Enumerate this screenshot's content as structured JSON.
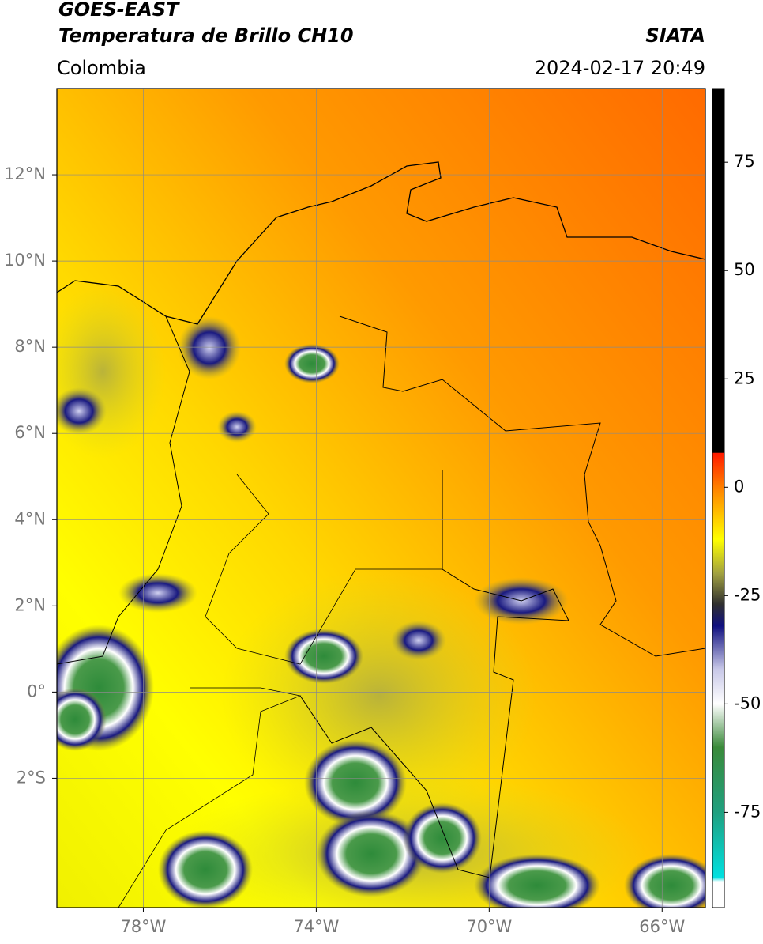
{
  "header": {
    "title": "GOES-EAST",
    "subtitle": "Temperatura de Brillo CH10",
    "source": "SIATA",
    "region": "Colombia",
    "datetime": "2024-02-17 20:49"
  },
  "map": {
    "lonlim": [
      -80,
      -65
    ],
    "latlim": [
      -5,
      14
    ],
    "lonticks": [
      {
        "value": -78,
        "label": "78°W"
      },
      {
        "value": -74,
        "label": "74°W"
      },
      {
        "value": -70,
        "label": "70°W"
      },
      {
        "value": -66,
        "label": "66°W"
      }
    ],
    "latticks": [
      {
        "value": 12,
        "label": "12°N"
      },
      {
        "value": 10,
        "label": "10°N"
      },
      {
        "value": 8,
        "label": "8°N"
      },
      {
        "value": 6,
        "label": "6°N"
      },
      {
        "value": 4,
        "label": "4°N"
      },
      {
        "value": 2,
        "label": "2°N"
      },
      {
        "value": 0,
        "label": "0°"
      },
      {
        "value": -2,
        "label": "2°S"
      }
    ],
    "grid": true
  },
  "colorbar": {
    "lim": [
      -97,
      92
    ],
    "ticks": [
      75,
      50,
      25,
      0,
      -25,
      -50,
      -75
    ],
    "stops": [
      {
        "value": 92,
        "color": "#000000"
      },
      {
        "value": 8,
        "color": "#000000"
      },
      {
        "value": 7.9,
        "color": "#ff1a00"
      },
      {
        "value": 0,
        "color": "#ff8000"
      },
      {
        "value": -12,
        "color": "#ffff00"
      },
      {
        "value": -20,
        "color": "#a0a040"
      },
      {
        "value": -27,
        "color": "#303030"
      },
      {
        "value": -32,
        "color": "#101080"
      },
      {
        "value": -42,
        "color": "#c8c8e8"
      },
      {
        "value": -50,
        "color": "#ffffff"
      },
      {
        "value": -60,
        "color": "#3a8a3a"
      },
      {
        "value": -75,
        "color": "#20a080"
      },
      {
        "value": -90,
        "color": "#00e0e0"
      },
      {
        "value": -91,
        "color": "#ffffff"
      },
      {
        "value": -97,
        "color": "#ffffff"
      }
    ]
  }
}
